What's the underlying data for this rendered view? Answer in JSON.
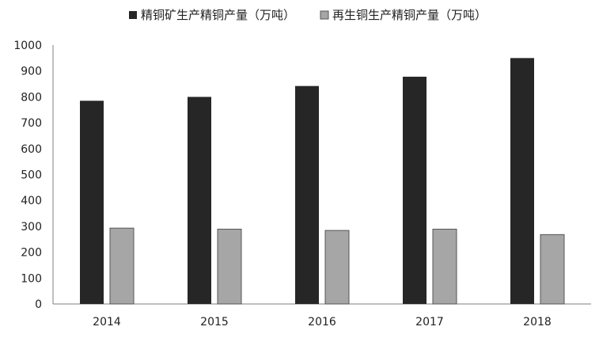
{
  "chart_data": {
    "type": "bar",
    "title": "",
    "xlabel": "",
    "ylabel": "",
    "categories": [
      "2014",
      "2015",
      "2016",
      "2017",
      "2018"
    ],
    "series": [
      {
        "name": "精铜矿生产精铜产量（万吨）",
        "values": [
          785,
          800,
          842,
          878,
          950
        ],
        "color": "#262626"
      },
      {
        "name": "再生铜生产精铜产量（万吨）",
        "values": [
          293,
          289,
          284,
          289,
          268
        ],
        "color": "#a6a6a6"
      }
    ],
    "ylim": [
      0,
      1000
    ],
    "yticks": [
      0,
      100,
      200,
      300,
      400,
      500,
      600,
      700,
      800,
      900,
      1000
    ],
    "grid": false,
    "legend_position": "top-center"
  }
}
